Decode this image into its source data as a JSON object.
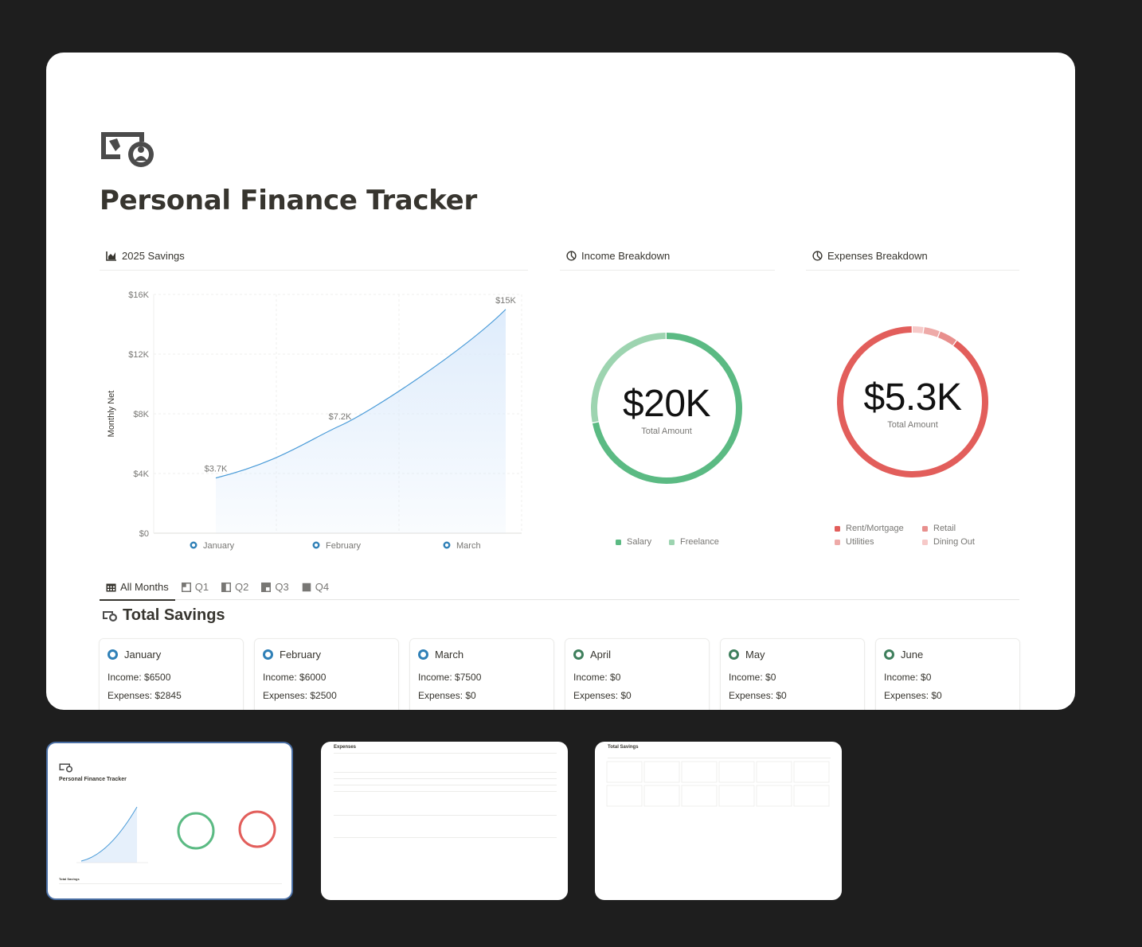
{
  "page": {
    "title": "Personal Finance Tracker"
  },
  "sections": {
    "savings": "2025 Savings",
    "income": "Income Breakdown",
    "expenses": "Expenses Breakdown"
  },
  "chart_data": [
    {
      "type": "area",
      "title": "2025 Savings",
      "ylabel": "Monthly Net",
      "xlabel": "",
      "categories": [
        "January",
        "February",
        "March"
      ],
      "series": [
        {
          "values": [
            3700,
            7200,
            15000
          ]
        }
      ],
      "data_labels": [
        "$3.7K",
        "$7.2K",
        "$15K"
      ],
      "ylim": [
        0,
        16000
      ],
      "yticks": [
        "$0",
        "$4K",
        "$8K",
        "$12K",
        "$16K"
      ],
      "grid": true,
      "colors": {
        "line": "#4a9bd8",
        "fill": "#dbeafb"
      }
    },
    {
      "type": "pie",
      "title": "Income Breakdown",
      "center_value": "$20K",
      "center_label": "Total Amount",
      "slices": [
        {
          "name": "Salary",
          "value": 0.72,
          "color": "#5bba83"
        },
        {
          "name": "Freelance",
          "value": 0.28,
          "color": "#9dd4b0"
        }
      ]
    },
    {
      "type": "pie",
      "title": "Expenses Breakdown",
      "center_value": "$5.3K",
      "center_label": "Total Amount",
      "slices": [
        {
          "name": "Rent/Mortgage",
          "value": 0.9,
          "color": "#e25e5b"
        },
        {
          "name": "Retail",
          "value": 0.04,
          "color": "#e88f8d"
        },
        {
          "name": "Utilities",
          "value": 0.035,
          "color": "#eeaaa8"
        },
        {
          "name": "Dining Out",
          "value": 0.025,
          "color": "#f6c9c8"
        }
      ]
    }
  ],
  "tabs": [
    "All Months",
    "Q1",
    "Q2",
    "Q3",
    "Q4"
  ],
  "total_savings": {
    "title": "Total Savings",
    "months": [
      {
        "name": "January",
        "income": "Income: $6500",
        "expenses": "Expenses: $2845",
        "ring": "blue"
      },
      {
        "name": "February",
        "income": "Income: $6000",
        "expenses": "Expenses: $2500",
        "ring": "blue"
      },
      {
        "name": "March",
        "income": "Income: $7500",
        "expenses": "Expenses: $0",
        "ring": "blue"
      },
      {
        "name": "April",
        "income": "Income: $0",
        "expenses": "Expenses: $0",
        "ring": "green"
      },
      {
        "name": "May",
        "income": "Income: $0",
        "expenses": "Expenses: $0",
        "ring": "green"
      },
      {
        "name": "June",
        "income": "Income: $0",
        "expenses": "Expenses: $0",
        "ring": "green"
      }
    ]
  },
  "thumbnails": [
    {
      "title": "Personal Finance Tracker",
      "sub": "Total Savings"
    },
    {
      "title": "Expenses",
      "sub": ""
    },
    {
      "title": "Total Savings",
      "sub": ""
    }
  ],
  "colors": {
    "accent": "#2f80b7",
    "background": "#1e1e1e"
  }
}
